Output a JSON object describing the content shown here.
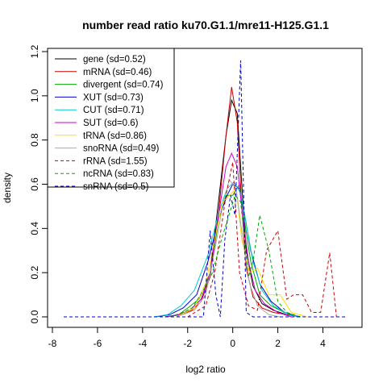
{
  "chart_data": {
    "type": "line",
    "title": "number read ratio ku70.G1.1/mre11-H125.G1.1",
    "xlabel": "log2 ratio",
    "ylabel": "density",
    "xlim": [
      -8,
      5.5
    ],
    "ylim": [
      0,
      1.2
    ],
    "x_ticks": [
      -8,
      -6,
      -4,
      -2,
      0,
      2,
      4
    ],
    "y_ticks": [
      0.0,
      0.2,
      0.4,
      0.6,
      0.8,
      1.0,
      1.2
    ],
    "x_tick_labels": [
      "-8",
      "-6",
      "-4",
      "-2",
      "0",
      "2",
      "4"
    ],
    "y_tick_labels": [
      "0.0",
      "0.2",
      "0.4",
      "0.6",
      "0.8",
      "1.0",
      "1.2"
    ],
    "grid": false,
    "legend_position": "top-left",
    "series": [
      {
        "name": "gene (sd=0.52)",
        "color": "#000000",
        "dash": "solid",
        "points": [
          [
            -3.0,
            0.0
          ],
          [
            -2.3,
            0.01
          ],
          [
            -1.9,
            0.03
          ],
          [
            -1.4,
            0.08
          ],
          [
            -1.0,
            0.2
          ],
          [
            -0.6,
            0.55
          ],
          [
            -0.3,
            0.82
          ],
          [
            -0.05,
            0.98
          ],
          [
            0.2,
            0.92
          ],
          [
            0.4,
            0.6
          ],
          [
            0.6,
            0.3
          ],
          [
            0.9,
            0.14
          ],
          [
            1.3,
            0.06
          ],
          [
            1.8,
            0.03
          ],
          [
            2.4,
            0.01
          ],
          [
            3.0,
            0.0
          ]
        ]
      },
      {
        "name": "mRNA (sd=0.46)",
        "color": "#cc0000",
        "dash": "solid",
        "points": [
          [
            -3.0,
            0.0
          ],
          [
            -2.3,
            0.01
          ],
          [
            -1.8,
            0.03
          ],
          [
            -1.4,
            0.07
          ],
          [
            -1.0,
            0.18
          ],
          [
            -0.6,
            0.5
          ],
          [
            -0.3,
            0.82
          ],
          [
            -0.05,
            1.04
          ],
          [
            0.2,
            0.88
          ],
          [
            0.4,
            0.5
          ],
          [
            0.6,
            0.22
          ],
          [
            0.9,
            0.09
          ],
          [
            1.3,
            0.04
          ],
          [
            1.8,
            0.02
          ],
          [
            2.4,
            0.01
          ],
          [
            3.0,
            0.0
          ]
        ]
      },
      {
        "name": "divergent (sd=0.74)",
        "color": "#00aa00",
        "dash": "solid",
        "points": [
          [
            -3.0,
            0.0
          ],
          [
            -2.4,
            0.01
          ],
          [
            -2.0,
            0.04
          ],
          [
            -1.5,
            0.08
          ],
          [
            -1.0,
            0.2
          ],
          [
            -0.6,
            0.45
          ],
          [
            -0.3,
            0.55
          ],
          [
            0.0,
            0.55
          ],
          [
            0.3,
            0.6
          ],
          [
            0.5,
            0.45
          ],
          [
            0.8,
            0.25
          ],
          [
            1.2,
            0.1
          ],
          [
            1.7,
            0.05
          ],
          [
            2.3,
            0.02
          ],
          [
            3.0,
            0.0
          ]
        ]
      },
      {
        "name": "XUT (sd=0.73)",
        "color": "#0000cc",
        "dash": "solid",
        "points": [
          [
            -3.4,
            0.0
          ],
          [
            -2.8,
            0.01
          ],
          [
            -2.2,
            0.04
          ],
          [
            -1.6,
            0.1
          ],
          [
            -1.1,
            0.25
          ],
          [
            -0.6,
            0.45
          ],
          [
            -0.25,
            0.55
          ],
          [
            0.0,
            0.6
          ],
          [
            0.3,
            0.58
          ],
          [
            0.55,
            0.45
          ],
          [
            0.8,
            0.3
          ],
          [
            1.2,
            0.15
          ],
          [
            1.7,
            0.07
          ],
          [
            2.3,
            0.02
          ],
          [
            2.9,
            0.0
          ]
        ]
      },
      {
        "name": "CUT (sd=0.71)",
        "color": "#00cccc",
        "dash": "solid",
        "points": [
          [
            -3.5,
            0.0
          ],
          [
            -2.9,
            0.01
          ],
          [
            -2.3,
            0.05
          ],
          [
            -1.7,
            0.12
          ],
          [
            -1.1,
            0.28
          ],
          [
            -0.6,
            0.48
          ],
          [
            -0.25,
            0.58
          ],
          [
            0.05,
            0.61
          ],
          [
            0.35,
            0.56
          ],
          [
            0.6,
            0.42
          ],
          [
            0.9,
            0.25
          ],
          [
            1.3,
            0.12
          ],
          [
            1.8,
            0.05
          ],
          [
            2.5,
            0.01
          ],
          [
            3.0,
            0.0
          ]
        ]
      },
      {
        "name": "SUT (sd=0.6)",
        "color": "#cc00cc",
        "dash": "solid",
        "points": [
          [
            -3.0,
            0.0
          ],
          [
            -2.4,
            0.01
          ],
          [
            -1.9,
            0.03
          ],
          [
            -1.4,
            0.08
          ],
          [
            -1.0,
            0.2
          ],
          [
            -0.6,
            0.48
          ],
          [
            -0.3,
            0.68
          ],
          [
            -0.05,
            0.74
          ],
          [
            0.2,
            0.68
          ],
          [
            0.45,
            0.45
          ],
          [
            0.7,
            0.25
          ],
          [
            1.0,
            0.12
          ],
          [
            1.4,
            0.06
          ],
          [
            2.0,
            0.02
          ],
          [
            2.6,
            0.0
          ]
        ]
      },
      {
        "name": "tRNA (sd=0.86)",
        "color": "#ffdd00",
        "dash": "solid",
        "points": [
          [
            -2.5,
            0.0
          ],
          [
            -1.7,
            0.04
          ],
          [
            -1.2,
            0.15
          ],
          [
            -0.8,
            0.35
          ],
          [
            -0.45,
            0.52
          ],
          [
            -0.15,
            0.55
          ],
          [
            0.15,
            0.58
          ],
          [
            0.4,
            0.35
          ],
          [
            0.75,
            0.2
          ],
          [
            1.1,
            0.22
          ],
          [
            1.6,
            0.1
          ],
          [
            2.1,
            0.1
          ],
          [
            2.6,
            0.02
          ],
          [
            3.3,
            0.0
          ]
        ]
      },
      {
        "name": "snoRNA (sd=0.49)",
        "color": "#aaaaaa",
        "dash": "solid",
        "points": [
          [
            -2.5,
            0.0
          ],
          [
            -1.7,
            0.03
          ],
          [
            -1.2,
            0.1
          ],
          [
            -0.8,
            0.3
          ],
          [
            -0.45,
            0.5
          ],
          [
            -0.15,
            0.62
          ],
          [
            0.15,
            0.58
          ],
          [
            0.45,
            0.35
          ],
          [
            0.75,
            0.15
          ],
          [
            1.1,
            0.05
          ],
          [
            1.6,
            0.01
          ],
          [
            2.1,
            0.0
          ]
        ]
      },
      {
        "name": "rRNA (sd=1.55)",
        "color": "#cc0000",
        "dash": "dashed",
        "points": [
          [
            -2.0,
            0.0
          ],
          [
            -1.2,
            0.05
          ],
          [
            -0.8,
            0.2
          ],
          [
            -0.3,
            0.55
          ],
          [
            0.0,
            0.7
          ],
          [
            0.3,
            0.2
          ],
          [
            0.7,
            0.05
          ],
          [
            1.1,
            0.03
          ],
          [
            1.5,
            0.3
          ],
          [
            2.0,
            0.39
          ],
          [
            2.4,
            0.08
          ],
          [
            2.7,
            0.1
          ],
          [
            3.1,
            0.1
          ],
          [
            3.5,
            0.02
          ],
          [
            3.9,
            0.02
          ],
          [
            4.3,
            0.29
          ],
          [
            4.6,
            0.0
          ]
        ]
      },
      {
        "name": "ncRNA (sd=0.83)",
        "color": "#00aa00",
        "dash": "dashed",
        "points": [
          [
            -2.8,
            0.0
          ],
          [
            -2.2,
            0.02
          ],
          [
            -1.8,
            0.04
          ],
          [
            -1.3,
            0.12
          ],
          [
            -0.9,
            0.2
          ],
          [
            -0.5,
            0.35
          ],
          [
            -0.2,
            0.45
          ],
          [
            0.1,
            0.55
          ],
          [
            0.35,
            0.52
          ],
          [
            0.7,
            0.18
          ],
          [
            0.9,
            0.25
          ],
          [
            1.2,
            0.46
          ],
          [
            1.6,
            0.3
          ],
          [
            2.0,
            0.07
          ],
          [
            2.4,
            0.02
          ],
          [
            3.0,
            0.0
          ]
        ]
      },
      {
        "name": "snRNA (sd=0.5)",
        "color": "#0000cc",
        "dash": "dashed",
        "points": [
          [
            -7.5,
            0.0
          ],
          [
            -1.3,
            0.0
          ],
          [
            -1.0,
            0.39
          ],
          [
            -0.75,
            0.1
          ],
          [
            -0.55,
            0.0
          ],
          [
            -0.35,
            0.35
          ],
          [
            -0.1,
            0.55
          ],
          [
            0.1,
            0.46
          ],
          [
            0.35,
            1.16
          ],
          [
            0.6,
            0.02
          ],
          [
            0.9,
            0.0
          ],
          [
            5.0,
            0.0
          ]
        ]
      }
    ]
  }
}
